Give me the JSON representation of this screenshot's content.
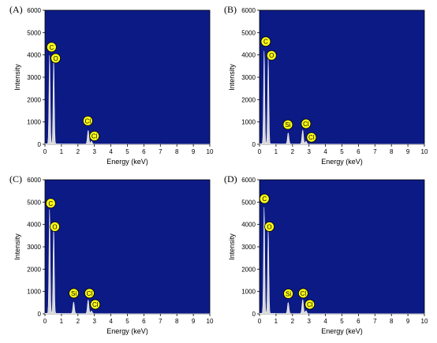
{
  "colors": {
    "plot_bg": "#0c1a86",
    "spectrum_fill": "#d9d9d9",
    "spectrum_line": "#f0f0f0",
    "label_fill": "#ffff1a",
    "label_stroke": "#000000"
  },
  "chart_data": [
    {
      "type": "line",
      "panel": "(A)",
      "xlabel": "Energy (keV)",
      "ylabel": "Intensity",
      "xlim": [
        0,
        10
      ],
      "ylim": [
        0,
        6000
      ],
      "xticks": [
        0,
        1,
        2,
        3,
        4,
        5,
        6,
        7,
        8,
        9,
        10
      ],
      "yticks": [
        0,
        1000,
        2000,
        3000,
        4000,
        5000,
        6000
      ],
      "peaks": [
        {
          "element": "C",
          "energy": 0.28,
          "intensity": 4000
        },
        {
          "element": "O",
          "energy": 0.53,
          "intensity": 3800
        },
        {
          "element": "Cl",
          "energy": 2.62,
          "intensity": 620
        },
        {
          "element": "Cl",
          "energy": 2.82,
          "intensity": 130
        }
      ],
      "labels": [
        {
          "text": "C",
          "energy": 0.4,
          "intensity": 4350
        },
        {
          "text": "O",
          "energy": 0.65,
          "intensity": 3850
        },
        {
          "text": "Cl",
          "energy": 2.6,
          "intensity": 1050
        },
        {
          "text": "Cl",
          "energy": 3.0,
          "intensity": 370
        }
      ]
    },
    {
      "type": "line",
      "panel": "(B)",
      "xlabel": "Energy (keV)",
      "ylabel": "Intensity",
      "xlim": [
        0,
        10
      ],
      "ylim": [
        0,
        6000
      ],
      "xticks": [
        0,
        1,
        2,
        3,
        4,
        5,
        6,
        7,
        8,
        9,
        10
      ],
      "yticks": [
        0,
        1000,
        2000,
        3000,
        4000,
        5000,
        6000
      ],
      "peaks": [
        {
          "element": "C",
          "energy": 0.28,
          "intensity": 4200
        },
        {
          "element": "O",
          "energy": 0.53,
          "intensity": 3900
        },
        {
          "element": "Si",
          "energy": 1.74,
          "intensity": 500
        },
        {
          "element": "Cl",
          "energy": 2.62,
          "intensity": 630
        },
        {
          "element": "Cl",
          "energy": 2.82,
          "intensity": 130
        }
      ],
      "labels": [
        {
          "text": "C",
          "energy": 0.38,
          "intensity": 4600
        },
        {
          "text": "O",
          "energy": 0.73,
          "intensity": 3980
        },
        {
          "text": "Si",
          "energy": 1.72,
          "intensity": 880
        },
        {
          "text": "Cl",
          "energy": 2.82,
          "intensity": 920
        },
        {
          "text": "Cl",
          "energy": 3.15,
          "intensity": 310
        }
      ]
    },
    {
      "type": "line",
      "panel": "(C)",
      "xlabel": "Energy (keV)",
      "ylabel": "Intensity",
      "xlim": [
        0,
        10
      ],
      "ylim": [
        0,
        6000
      ],
      "xticks": [
        0,
        1,
        2,
        3,
        4,
        5,
        6,
        7,
        8,
        9,
        10
      ],
      "yticks": [
        0,
        1000,
        2000,
        3000,
        4000,
        5000,
        6000
      ],
      "peaks": [
        {
          "element": "C",
          "energy": 0.28,
          "intensity": 4700
        },
        {
          "element": "O",
          "energy": 0.53,
          "intensity": 3850
        },
        {
          "element": "Si",
          "energy": 1.74,
          "intensity": 520
        },
        {
          "element": "Cl",
          "energy": 2.62,
          "intensity": 620
        },
        {
          "element": "Cl",
          "energy": 2.82,
          "intensity": 120
        }
      ],
      "labels": [
        {
          "text": "C",
          "energy": 0.35,
          "intensity": 4950
        },
        {
          "text": "O",
          "energy": 0.6,
          "intensity": 3900
        },
        {
          "text": "Si",
          "energy": 1.75,
          "intensity": 920
        },
        {
          "text": "Cl",
          "energy": 2.7,
          "intensity": 920
        },
        {
          "text": "Cl",
          "energy": 3.05,
          "intensity": 420
        }
      ]
    },
    {
      "type": "line",
      "panel": "(D)",
      "xlabel": "Energy (keV)",
      "ylabel": "Intensity",
      "xlim": [
        0,
        10
      ],
      "ylim": [
        0,
        6000
      ],
      "xticks": [
        0,
        1,
        2,
        3,
        4,
        5,
        6,
        7,
        8,
        9,
        10
      ],
      "yticks": [
        0,
        1000,
        2000,
        3000,
        4000,
        5000,
        6000
      ],
      "peaks": [
        {
          "element": "C",
          "energy": 0.28,
          "intensity": 4800
        },
        {
          "element": "O",
          "energy": 0.53,
          "intensity": 3800
        },
        {
          "element": "Si",
          "energy": 1.74,
          "intensity": 500
        },
        {
          "element": "Cl",
          "energy": 2.62,
          "intensity": 630
        },
        {
          "element": "Cl",
          "energy": 2.82,
          "intensity": 130
        }
      ],
      "labels": [
        {
          "text": "C",
          "energy": 0.3,
          "intensity": 5150
        },
        {
          "text": "O",
          "energy": 0.6,
          "intensity": 3900
        },
        {
          "text": "Si",
          "energy": 1.75,
          "intensity": 900
        },
        {
          "text": "Cl",
          "energy": 2.65,
          "intensity": 920
        },
        {
          "text": "Cl",
          "energy": 3.05,
          "intensity": 420
        }
      ]
    }
  ]
}
